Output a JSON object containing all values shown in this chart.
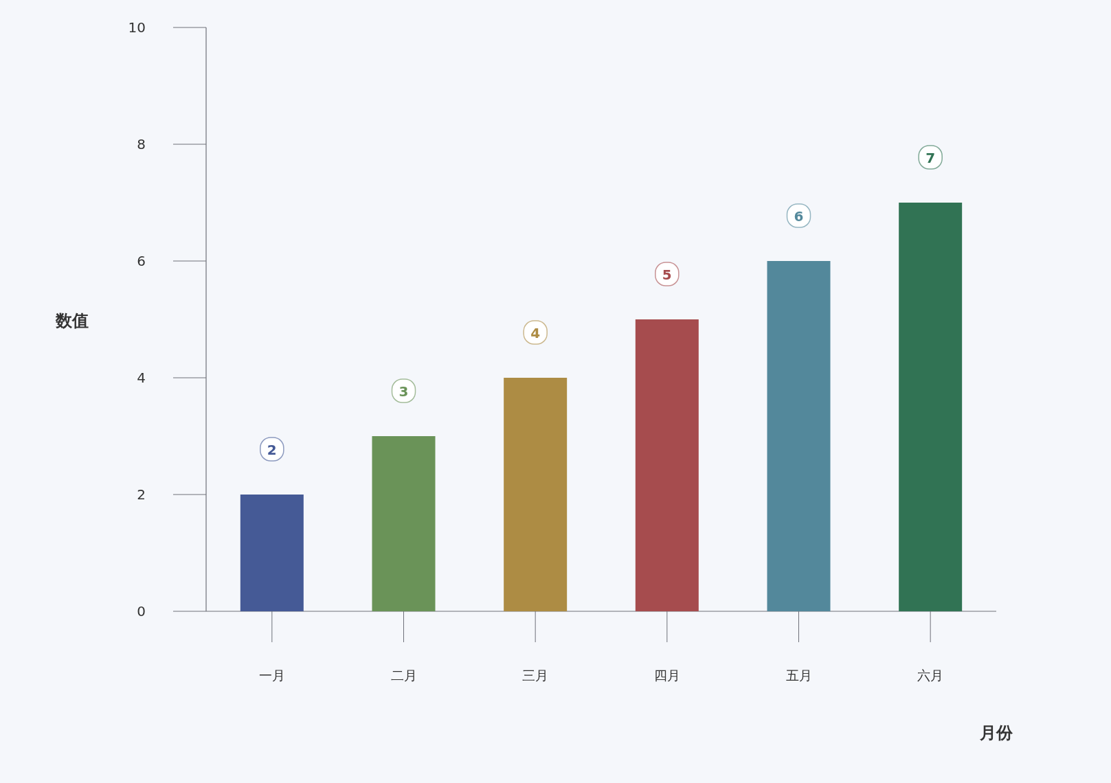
{
  "chart_data": {
    "type": "bar",
    "xlabel": "月份",
    "ylabel": "数值",
    "categories": [
      "一月",
      "二月",
      "三月",
      "四月",
      "五月",
      "六月"
    ],
    "values": [
      2,
      3,
      4,
      5,
      6,
      7
    ],
    "colors": [
      "#455a96",
      "#6a9358",
      "#ad8c44",
      "#a64c4e",
      "#53889b",
      "#317354"
    ],
    "ylim": [
      0,
      10
    ],
    "yticks": [
      0,
      2,
      4,
      6,
      8,
      10
    ],
    "data_labels": true
  }
}
